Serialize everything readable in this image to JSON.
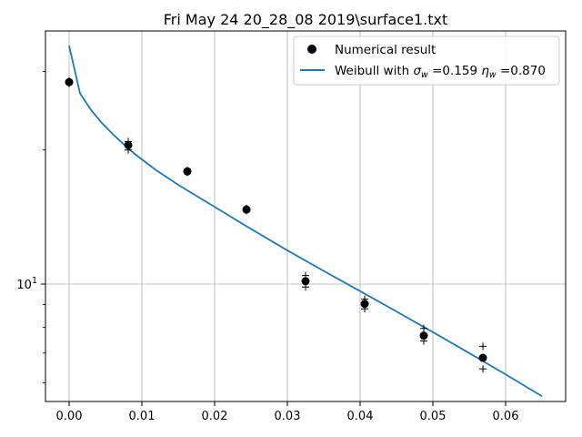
{
  "chart_data": {
    "type": "scatter",
    "title": "Fri May 24 20_28_08 2019\\surface1.txt",
    "xlabel": "",
    "ylabel": "",
    "xlim": [
      -0.00325,
      0.06825
    ],
    "ylim": [
      5.45,
      37.0
    ],
    "yscale": "log",
    "grid": true,
    "legend_position": "top-right",
    "x_ticks": [
      0.0,
      0.01,
      0.02,
      0.03,
      0.04,
      0.05,
      0.06
    ],
    "x_tick_labels": [
      "0.00",
      "0.01",
      "0.02",
      "0.03",
      "0.04",
      "0.05",
      "0.06"
    ],
    "y_major_ticks": [
      10
    ],
    "y_major_tick_labels": [
      "10"
    ],
    "y_minor_ticks": [
      6,
      7,
      8,
      9,
      20,
      30
    ],
    "series": [
      {
        "name": "Numerical result",
        "kind": "points",
        "color": "#000000",
        "x": [
          0.0,
          0.00813,
          0.01625,
          0.02438,
          0.0325,
          0.04063,
          0.04875,
          0.05688
        ],
        "y": [
          28.4,
          20.5,
          17.9,
          14.7,
          10.15,
          9.03,
          7.66,
          6.83
        ],
        "error_markers": [
          [
            28.2,
            28.6
          ],
          [
            20.0,
            20.9
          ],
          [
            17.8,
            18.0
          ],
          [
            14.6,
            14.8
          ],
          [
            9.85,
            10.45
          ],
          [
            8.8,
            9.25
          ],
          [
            7.45,
            7.95
          ],
          [
            6.45,
            7.25
          ]
        ]
      },
      {
        "name": "Weibull with σw =0.159 ηw =0.870",
        "kind": "line",
        "color": "#1f77b4",
        "x": [
          0.0,
          0.0015,
          0.003,
          0.0045,
          0.006,
          0.0075,
          0.009,
          0.012,
          0.015,
          0.02,
          0.025,
          0.03,
          0.035,
          0.04,
          0.045,
          0.05,
          0.055,
          0.06,
          0.065
        ],
        "y": [
          34.3,
          26.8,
          24.6,
          23.0,
          21.7,
          20.6,
          19.6,
          18.0,
          16.7,
          14.9,
          13.3,
          11.9,
          10.7,
          9.64,
          8.68,
          7.8,
          7.0,
          6.27,
          5.6
        ]
      }
    ],
    "legend": {
      "entries": [
        {
          "label": "Numerical result",
          "marker": "circle"
        },
        {
          "label_prefix": "Weibull with ",
          "sigma_symbol": "σ",
          "sigma_sub": "w",
          "sigma_value": " =0.159 ",
          "eta_symbol": "η",
          "eta_sub": "w",
          "eta_value": " =0.870",
          "marker": "line"
        }
      ]
    }
  }
}
